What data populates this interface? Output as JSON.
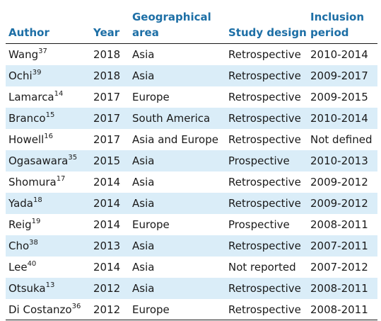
{
  "header": {
    "author": "Author",
    "year": "Year",
    "geo_line1": "Geographical",
    "geo_line2": "area",
    "study_design": "Study design",
    "incl_line1": "Inclusion",
    "incl_line2": "period"
  },
  "rows": [
    {
      "author": "Wang",
      "ref": "37",
      "year": "2018",
      "area": "Asia",
      "design": "Retrospective",
      "period": "2010-2014"
    },
    {
      "author": "Ochi",
      "ref": "39",
      "year": "2018",
      "area": "Asia",
      "design": "Retrospective",
      "period": "2009-2017"
    },
    {
      "author": "Lamarca",
      "ref": "14",
      "year": "2017",
      "area": "Europe",
      "design": "Retrospective",
      "period": "2009-2015"
    },
    {
      "author": "Branco",
      "ref": "15",
      "year": "2017",
      "area": "South America",
      "design": "Retrospective",
      "period": "2010-2014"
    },
    {
      "author": "Howell",
      "ref": "16",
      "year": "2017",
      "area": "Asia and Europe",
      "design": "Retrospective",
      "period": "Not defined"
    },
    {
      "author": "Ogasawara",
      "ref": "35",
      "year": "2015",
      "area": "Asia",
      "design": "Prospective",
      "period": "2010-2013"
    },
    {
      "author": "Shomura",
      "ref": "17",
      "year": "2014",
      "area": "Asia",
      "design": "Retrospective",
      "period": "2009-2012"
    },
    {
      "author": "Yada",
      "ref": "18",
      "year": "2014",
      "area": "Asia",
      "design": "Retrospective",
      "period": "2009-2012"
    },
    {
      "author": "Reig",
      "ref": "19",
      "year": "2014",
      "area": "Europe",
      "design": "Prospective",
      "period": "2008-2011"
    },
    {
      "author": "Cho",
      "ref": "38",
      "year": "2013",
      "area": "Asia",
      "design": "Retrospective",
      "period": "2007-2011"
    },
    {
      "author": "Lee",
      "ref": "40",
      "year": "2014",
      "area": "Asia",
      "design": "Not reported",
      "period": "2007-2012"
    },
    {
      "author": "Otsuka",
      "ref": "13",
      "year": "2012",
      "area": "Asia",
      "design": "Retrospective",
      "period": "2008-2011"
    },
    {
      "author": "Di Costanzo",
      "ref": "36",
      "year": "2012",
      "area": "Europe",
      "design": "Retrospective",
      "period": "2008-2011"
    }
  ],
  "colors": {
    "header_text": "#1d6fa6",
    "stripe": "#daedf8"
  }
}
